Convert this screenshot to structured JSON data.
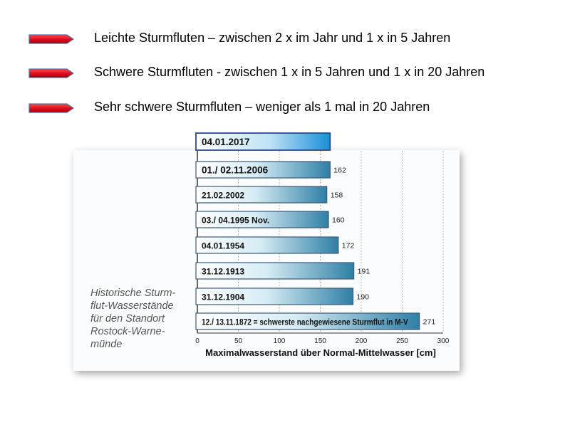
{
  "legend": {
    "items": [
      {
        "label": "Leichte Sturmfluten – zwischen 2 x im Jahr und 1 x in 5 Jahren",
        "icon": "red-arrow-icon"
      },
      {
        "label": "Schwere Sturmfluten  - zwischen 1 x in 5 Jahren und 1 x in 20 Jahren",
        "icon": "red-arrow-icon"
      },
      {
        "label": "Sehr schwere Sturmfluten – weniger als 1 mal in 20 Jahren",
        "icon": "red-arrow-icon"
      }
    ],
    "arrow_color": "#e0101a"
  },
  "caption": {
    "lines": [
      "Historische Sturm-",
      "flut-Wasserstände",
      "für den Standort",
      "Rostock-Warne-",
      "münde"
    ]
  },
  "chart_data": {
    "type": "bar",
    "orientation": "horizontal",
    "categories": [
      "04.01.2017",
      "01./ 02.11.2006",
      "21.02.2002",
      "03./ 04.1995 Nov.",
      "04.01.1954",
      "31.12.1913",
      "31.12.1904",
      "12./ 13.11.1872 = schwerste nachgewiesene Sturmflut in M-V"
    ],
    "values": [
      162,
      162,
      158,
      160,
      172,
      191,
      190,
      271
    ],
    "value_labels": [
      "",
      "162",
      "158",
      "160",
      "172",
      "191",
      "190",
      "271"
    ],
    "xlabel": "Maximalwasserstand über Normal-Mittelwasser [cm]",
    "xlim": [
      0,
      300
    ],
    "xticks": [
      0,
      50,
      100,
      150,
      200,
      250,
      300
    ],
    "grid": true,
    "bar_color_start": "#ffffff",
    "bar_color_end": "#2e7fa6",
    "highlight_color_end": "#1a8ed8"
  }
}
